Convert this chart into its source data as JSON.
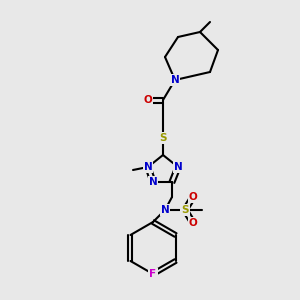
{
  "background_color": "#e8e8e8",
  "bond_color": "#000000",
  "atom_colors": {
    "N": "#0000cc",
    "O": "#cc0000",
    "S": "#999900",
    "F": "#cc00cc",
    "C": "#000000"
  },
  "font_size": 7.5,
  "line_width": 1.5
}
